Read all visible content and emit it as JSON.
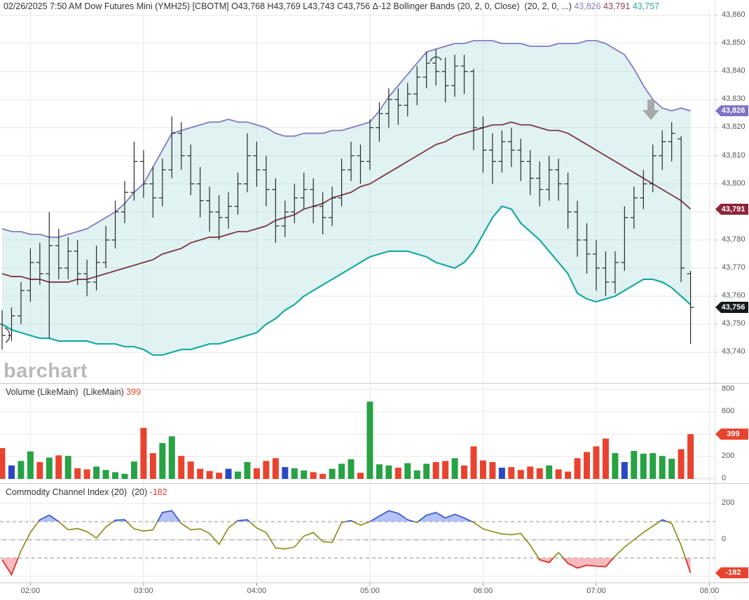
{
  "title": {
    "text": "02/26/2025 7:50 AM Dow Futures Mini (YMH25) [CBOTM] O43,768 H43,769 L43,743 C43,756 Δ-12 Bollinger Bands (20, 2, 0, Close)  (20, 2, 0, ...) ",
    "upper_value": "43,826",
    "middle_value": "43,791",
    "lower_value": "43,757"
  },
  "watermark": "barchart",
  "panels": {
    "volume": {
      "label": "Volume (LikeMain)  (LikeMain) ",
      "value": "399"
    },
    "cci": {
      "label": "Commodity Channel Index (20)  (20) ",
      "value": "-182"
    }
  },
  "badges": {
    "upper_band": {
      "label": "43,826",
      "value": 43826,
      "color": "#8071c5"
    },
    "middle_band": {
      "label": "43,791",
      "value": 43791,
      "color": "#8e2437"
    },
    "last_price": {
      "label": "43,756",
      "value": 43756,
      "color": "#15181a"
    },
    "volume": {
      "label": "399",
      "value": 399,
      "color": "#e8432e"
    },
    "cci": {
      "label": "-182",
      "value": -182,
      "color": "#e8432e"
    }
  },
  "axes": {
    "price_ticks": [
      43860,
      43850,
      43840,
      43830,
      43820,
      43810,
      43800,
      43790,
      43780,
      43770,
      43760,
      43750,
      43740
    ],
    "volume_ticks": [
      800,
      600,
      200,
      0
    ],
    "volume_gridlines": [
      800,
      600,
      400,
      200
    ],
    "cci_ticks": [
      200,
      0
    ],
    "cci_gridlines": [
      200,
      -200
    ],
    "time_ticks": [
      {
        "label": "02:00",
        "bar": 3
      },
      {
        "label": "03:00",
        "bar": 15
      },
      {
        "label": "04:00",
        "bar": 27
      },
      {
        "label": "05:00",
        "bar": 39
      },
      {
        "label": "06:00",
        "bar": 51
      },
      {
        "label": "07:00",
        "bar": 63
      },
      {
        "label": "08:00",
        "bar": 75
      }
    ]
  },
  "colors": {
    "band_upper": "#837ac1",
    "band_middle": "#7c3742",
    "band_lower": "#18aaa1",
    "band_fill": "#9fd8d4",
    "bar": "#26292b",
    "vol_up": "#27a244",
    "vol_down": "#e8432e",
    "vol_neutral": "#2c46c4",
    "cci_line": "#8f8d1f",
    "cci_over": "#3b5bdb",
    "cci_over_fill": "#8ba3f7",
    "cci_under": "#e03131",
    "cci_under_fill": "#f7a8ae",
    "grid": "#e7e7e7",
    "grid_dark": "#666666",
    "separator": "#c9c9c9",
    "axis_text": "#555555",
    "arrow": "#a3a3a3"
  },
  "chart_data": {
    "type": "ohlc",
    "symbol": "Dow Futures Mini (YMH25) [CBOTM]",
    "datetime": "02/26/2025 7:50 AM",
    "interval": "5min",
    "overlays": [
      "Bollinger Bands (20, 2, 0, Close)"
    ],
    "last": {
      "open": 43768,
      "high": 43769,
      "low": 43743,
      "close": 43756,
      "change": -12
    },
    "price_range": [
      43740,
      43860
    ],
    "volume_range": [
      0,
      800
    ],
    "cci_range": [
      -200,
      200
    ],
    "cci_thresholds": [
      100,
      -100
    ],
    "bars": [
      [
        "01:45",
        43750,
        43755,
        43741,
        43746
      ],
      [
        "01:50",
        43746,
        43756,
        43744,
        43753
      ],
      [
        "01:55",
        43753,
        43765,
        43750,
        43762
      ],
      [
        "02:00",
        43762,
        43777,
        43758,
        43772
      ],
      [
        "02:05",
        43772,
        43779,
        43764,
        43768
      ],
      [
        "02:10",
        43768,
        43790,
        43745,
        43778
      ],
      [
        "02:15",
        43778,
        43784,
        43766,
        43770
      ],
      [
        "02:20",
        43770,
        43781,
        43766,
        43776
      ],
      [
        "02:25",
        43776,
        43780,
        43764,
        43768
      ],
      [
        "02:30",
        43768,
        43773,
        43760,
        43765
      ],
      [
        "02:35",
        43765,
        43778,
        43762,
        43772
      ],
      [
        "02:40",
        43772,
        43785,
        43770,
        43780
      ],
      [
        "02:45",
        43780,
        43794,
        43777,
        43790
      ],
      [
        "02:50",
        43790,
        43801,
        43786,
        43797
      ],
      [
        "02:55",
        43797,
        43815,
        43794,
        43808
      ],
      [
        "03:00",
        43808,
        43812,
        43795,
        43800
      ],
      [
        "03:05",
        43800,
        43806,
        43788,
        43795
      ],
      [
        "03:10",
        43795,
        43809,
        43792,
        43805
      ],
      [
        "03:15",
        43805,
        43824,
        43802,
        43818
      ],
      [
        "03:20",
        43818,
        43822,
        43805,
        43810
      ],
      [
        "03:25",
        43810,
        43814,
        43796,
        43800
      ],
      [
        "03:30",
        43800,
        43806,
        43788,
        43794
      ],
      [
        "03:35",
        43794,
        43799,
        43783,
        43790
      ],
      [
        "03:40",
        43790,
        43796,
        43780,
        43788
      ],
      [
        "03:45",
        43788,
        43797,
        43784,
        43792
      ],
      [
        "03:50",
        43792,
        43804,
        43789,
        43800
      ],
      [
        "03:55",
        43800,
        43818,
        43797,
        43810
      ],
      [
        "04:00",
        43810,
        43815,
        43799,
        43805
      ],
      [
        "04:05",
        43805,
        43810,
        43792,
        43798
      ],
      [
        "04:10",
        43798,
        43802,
        43779,
        43785
      ],
      [
        "04:15",
        43785,
        43794,
        43781,
        43790
      ],
      [
        "04:20",
        43790,
        43800,
        43786,
        43795
      ],
      [
        "04:25",
        43795,
        43804,
        43791,
        43798
      ],
      [
        "04:30",
        43798,
        43802,
        43786,
        43792
      ],
      [
        "04:35",
        43792,
        43797,
        43782,
        43788
      ],
      [
        "04:40",
        43788,
        43799,
        43785,
        43795
      ],
      [
        "04:45",
        43795,
        43809,
        43792,
        43805
      ],
      [
        "04:50",
        43805,
        43815,
        43801,
        43810
      ],
      [
        "04:55",
        43810,
        43814,
        43800,
        43808
      ],
      [
        "05:00",
        43808,
        43823,
        43805,
        43820
      ],
      [
        "05:05",
        43820,
        43829,
        43815,
        43825
      ],
      [
        "05:10",
        43825,
        43834,
        43820,
        43830
      ],
      [
        "05:15",
        43830,
        43834,
        43821,
        43828
      ],
      [
        "05:20",
        43828,
        43836,
        43824,
        43832
      ],
      [
        "05:25",
        43832,
        43842,
        43828,
        43838
      ],
      [
        "05:30",
        43838,
        43847,
        43834,
        43843
      ],
      [
        "05:35",
        43843,
        43848,
        43835,
        43840
      ],
      [
        "05:40",
        43840,
        43845,
        43829,
        43835
      ],
      [
        "05:45",
        43835,
        43846,
        43831,
        43842
      ],
      [
        "05:50",
        43842,
        43846,
        43832,
        43840
      ],
      [
        "05:55",
        43840,
        43841,
        43812,
        43820
      ],
      [
        "06:00",
        43820,
        43824,
        43804,
        43812
      ],
      [
        "06:05",
        43812,
        43818,
        43800,
        43808
      ],
      [
        "06:10",
        43808,
        43819,
        43804,
        43815
      ],
      [
        "06:15",
        43815,
        43820,
        43806,
        43812
      ],
      [
        "06:20",
        43812,
        43816,
        43801,
        43808
      ],
      [
        "06:25",
        43808,
        43812,
        43796,
        43802
      ],
      [
        "06:30",
        43802,
        43808,
        43792,
        43798
      ],
      [
        "06:35",
        43798,
        43810,
        43794,
        43805
      ],
      [
        "06:40",
        43805,
        43809,
        43794,
        43800
      ],
      [
        "06:45",
        43800,
        43804,
        43784,
        43790
      ],
      [
        "06:50",
        43790,
        43794,
        43774,
        43780
      ],
      [
        "06:55",
        43780,
        43786,
        43768,
        43775
      ],
      [
        "07:00",
        43775,
        43780,
        43762,
        43770
      ],
      [
        "07:05",
        43770,
        43776,
        43760,
        43765
      ],
      [
        "07:10",
        43765,
        43776,
        43761,
        43772
      ],
      [
        "07:15",
        43772,
        43792,
        43769,
        43788
      ],
      [
        "07:20",
        43788,
        43799,
        43784,
        43795
      ],
      [
        "07:25",
        43795,
        43805,
        43791,
        43800
      ],
      [
        "07:30",
        43800,
        43814,
        43797,
        43810
      ],
      [
        "07:35",
        43810,
        43819,
        43805,
        43815
      ],
      [
        "07:40",
        43815,
        43822,
        43808,
        43818
      ],
      [
        "07:45",
        43816,
        43817,
        43765,
        43770
      ],
      [
        "07:50",
        43768,
        43769,
        43743,
        43756
      ]
    ],
    "volume": [
      275,
      120,
      160,
      245,
      150,
      190,
      210,
      205,
      95,
      85,
      110,
      80,
      60,
      45,
      155,
      455,
      230,
      320,
      380,
      205,
      155,
      90,
      70,
      55,
      90,
      65,
      150,
      95,
      160,
      185,
      105,
      95,
      75,
      60,
      45,
      90,
      135,
      175,
      55,
      690,
      130,
      120,
      100,
      140,
      75,
      135,
      150,
      160,
      185,
      120,
      290,
      165,
      150,
      100,
      105,
      80,
      110,
      95,
      120,
      85,
      65,
      185,
      240,
      290,
      360,
      230,
      150,
      250,
      225,
      230,
      205,
      180,
      265,
      399
    ],
    "volume_colors": [
      "R",
      "B",
      "G",
      "G",
      "R",
      "G",
      "R",
      "G",
      "R",
      "R",
      "G",
      "G",
      "G",
      "G",
      "G",
      "R",
      "R",
      "G",
      "G",
      "R",
      "R",
      "R",
      "R",
      "R",
      "B",
      "G",
      "G",
      "R",
      "R",
      "R",
      "B",
      "G",
      "G",
      "R",
      "R",
      "G",
      "G",
      "G",
      "R",
      "G",
      "G",
      "G",
      "R",
      "G",
      "G",
      "G",
      "R",
      "R",
      "G",
      "R",
      "R",
      "R",
      "R",
      "B",
      "R",
      "R",
      "R",
      "R",
      "G",
      "R",
      "R",
      "R",
      "R",
      "R",
      "R",
      "G",
      "B",
      "G",
      "G",
      "G",
      "G",
      "G",
      "R",
      "R"
    ],
    "cci": [
      -110,
      -192,
      -60,
      40,
      110,
      135,
      100,
      55,
      62,
      45,
      10,
      70,
      108,
      110,
      60,
      48,
      55,
      150,
      160,
      90,
      55,
      60,
      35,
      -25,
      65,
      105,
      110,
      65,
      40,
      -45,
      -50,
      -40,
      20,
      40,
      -10,
      -15,
      95,
      105,
      80,
      100,
      130,
      160,
      145,
      110,
      95,
      135,
      150,
      120,
      140,
      120,
      95,
      60,
      45,
      32,
      28,
      35,
      -30,
      -110,
      -125,
      -70,
      -130,
      -155,
      -140,
      -145,
      -148,
      -90,
      -40,
      0,
      40,
      75,
      110,
      90,
      -30,
      -182
    ],
    "bollinger": {
      "upper": [
        43784,
        43783,
        43783,
        43782,
        43782,
        43781,
        43781,
        43782,
        43783,
        43784,
        43786,
        43788,
        43790,
        43793,
        43797,
        43800,
        43806,
        43812,
        43818,
        43819,
        43820,
        43821,
        43822,
        43822,
        43823,
        43822,
        43822,
        43821,
        43820,
        43818,
        43817,
        43817,
        43818,
        43818,
        43818,
        43819,
        43819,
        43820,
        43821,
        43822,
        43826,
        43831,
        43835,
        43839,
        43843,
        43847,
        43848,
        43849,
        43850,
        43850,
        43851,
        43851,
        43851,
        43850,
        43850,
        43850,
        43849,
        43849,
        43849,
        43850,
        43850,
        43850,
        43851,
        43851,
        43850,
        43848,
        43846,
        43841,
        43835,
        43830,
        43827,
        43826,
        43827,
        43826
      ],
      "middle": [
        43768,
        43767,
        43767,
        43766,
        43766,
        43765,
        43765,
        43765,
        43766,
        43766,
        43767,
        43768,
        43769,
        43770,
        43771,
        43772,
        43773,
        43775,
        43776,
        43777,
        43779,
        43780,
        43781,
        43781,
        43782,
        43783,
        43783,
        43784,
        43785,
        43787,
        43788,
        43789,
        43791,
        43792,
        43793,
        43795,
        43796,
        43797,
        43799,
        43800,
        43802,
        43804,
        43806,
        43808,
        43810,
        43812,
        43814,
        43815,
        43817,
        43818,
        43819,
        43820,
        43821,
        43821,
        43822,
        43821,
        43821,
        43820,
        43819,
        43819,
        43818,
        43816,
        43814,
        43812,
        43810,
        43808,
        43806,
        43804,
        43802,
        43800,
        43798,
        43796,
        43794,
        43791
      ],
      "lower": [
        43750,
        43748,
        43747,
        43746,
        43745,
        43745,
        43744,
        43744,
        43744,
        43744,
        43743,
        43743,
        43743,
        43742,
        43742,
        43741,
        43739,
        43739,
        43740,
        43741,
        43741,
        43742,
        43743,
        43743,
        43744,
        43745,
        43746,
        43747,
        43750,
        43752,
        43755,
        43757,
        43760,
        43762,
        43764,
        43766,
        43768,
        43770,
        43772,
        43774,
        43775,
        43776,
        43776,
        43776,
        43775,
        43774,
        43772,
        43771,
        43770,
        43772,
        43776,
        43782,
        43788,
        43792,
        43791,
        43786,
        43783,
        43780,
        43776,
        43772,
        43768,
        43761,
        43759,
        43758,
        43759,
        43760,
        43762,
        43764,
        43766,
        43766,
        43765,
        43763,
        43760,
        43757
      ]
    },
    "annotations": [
      {
        "type": "arrow-down",
        "bar": 68.8,
        "price": 43830
      },
      {
        "type": "arc-top",
        "bar": 46,
        "price": 43845
      },
      {
        "type": "arc-left",
        "bar": 0.3,
        "price": 43746
      }
    ]
  }
}
